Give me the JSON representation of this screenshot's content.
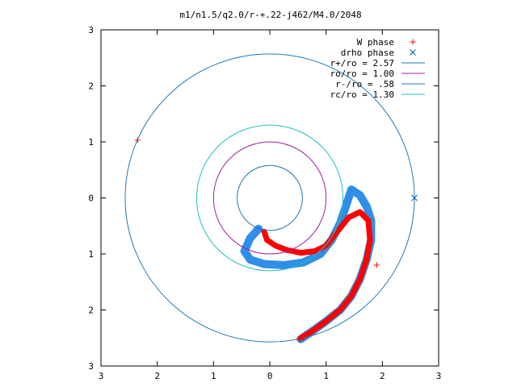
{
  "chart_data": {
    "type": "scatter",
    "title": "m1/n1.5/q2.0/r-+.22-j462/M4.0/2048",
    "xlabel": "",
    "ylabel": "",
    "xlim": [
      -3,
      3
    ],
    "ylim": [
      -3,
      3
    ],
    "grid": false,
    "legend_position": "top-right",
    "x_ticks": [
      "3",
      "2",
      "1",
      "0",
      "1",
      "2",
      "3"
    ],
    "y_ticks": [
      "3",
      "2",
      "1",
      "0",
      "1",
      "2",
      "3"
    ],
    "series": [
      {
        "name": "W phase",
        "kind": "points",
        "marker": "plus",
        "color": "#ff0000",
        "points": [
          [
            -2.35,
            1.03
          ],
          [
            0.52,
            -2.52
          ],
          [
            0.6,
            -2.48
          ],
          [
            1.15,
            -2.05
          ],
          [
            1.9,
            -1.2
          ]
        ]
      },
      {
        "name": "drho phase",
        "kind": "points",
        "marker": "cross",
        "color": "#0060ad",
        "points": [
          [
            2.57,
            0.0
          ]
        ]
      },
      {
        "name": "r+/ro = 2.57",
        "kind": "circle",
        "radius": 2.57,
        "color": "#1f77b4"
      },
      {
        "name": "ro/ro = 1.00",
        "kind": "circle",
        "radius": 1.0,
        "color": "#a020a0"
      },
      {
        "name": "r-/ro = .58",
        "kind": "circle",
        "radius": 0.58,
        "color": "#1f77b4"
      },
      {
        "name": "rc/ro = 1.30",
        "kind": "circle",
        "radius": 1.3,
        "color": "#20c0c0"
      }
    ],
    "curves": {
      "red_band": [
        [
          -0.1,
          -0.6
        ],
        [
          -0.05,
          -0.75
        ],
        [
          0.1,
          -0.85
        ],
        [
          0.3,
          -0.93
        ],
        [
          0.55,
          -0.98
        ],
        [
          0.8,
          -0.95
        ],
        [
          1.0,
          -0.85
        ],
        [
          1.2,
          -0.6
        ],
        [
          1.4,
          -0.35
        ],
        [
          1.6,
          -0.25
        ],
        [
          1.75,
          -0.4
        ],
        [
          1.78,
          -0.75
        ],
        [
          1.72,
          -1.1
        ],
        [
          1.6,
          -1.45
        ],
        [
          1.45,
          -1.75
        ],
        [
          1.25,
          -2.0
        ],
        [
          1.0,
          -2.2
        ],
        [
          0.75,
          -2.38
        ],
        [
          0.55,
          -2.5
        ]
      ],
      "blue_band": [
        [
          -0.2,
          -0.55
        ],
        [
          -0.35,
          -0.72
        ],
        [
          -0.45,
          -0.95
        ],
        [
          -0.35,
          -1.1
        ],
        [
          -0.1,
          -1.18
        ],
        [
          0.25,
          -1.2
        ],
        [
          0.6,
          -1.15
        ],
        [
          0.9,
          -1.0
        ],
        [
          1.1,
          -0.75
        ],
        [
          1.25,
          -0.45
        ],
        [
          1.35,
          -0.15
        ],
        [
          1.45,
          0.15
        ],
        [
          1.6,
          0.05
        ],
        [
          1.72,
          -0.15
        ],
        [
          1.8,
          -0.4
        ],
        [
          1.8,
          -0.75
        ],
        [
          1.72,
          -1.1
        ],
        [
          1.6,
          -1.45
        ],
        [
          1.45,
          -1.75
        ],
        [
          1.25,
          -2.0
        ],
        [
          1.0,
          -2.2
        ],
        [
          0.75,
          -2.38
        ],
        [
          0.55,
          -2.52
        ]
      ]
    }
  }
}
